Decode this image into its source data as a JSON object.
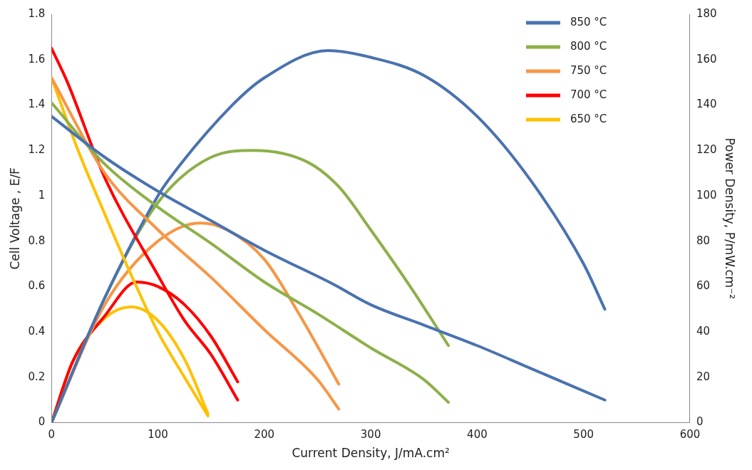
{
  "chart_data": {
    "type": "line",
    "xlabel": "Current Density, J/mA.cm²",
    "ylabel": "Cell Voltage , E/F",
    "y2label": "Power Density, P/mW.cm⁻²",
    "xlim": [
      0,
      600
    ],
    "xticks": [
      0,
      100,
      200,
      300,
      400,
      500,
      600
    ],
    "ylim": [
      0,
      1.8
    ],
    "yticks": [
      0,
      0.2,
      0.4,
      0.6,
      0.8,
      1,
      1.2,
      1.4,
      1.6,
      1.8
    ],
    "y2lim": [
      0,
      180
    ],
    "y2ticks": [
      0,
      20,
      40,
      60,
      80,
      100,
      120,
      140,
      160,
      180
    ],
    "legend": "top right",
    "marker": "none",
    "line_style": "solid",
    "series": [
      {
        "name": "850 °C",
        "color": "#4a72b0",
        "x": [
          0,
          50,
          100,
          150,
          200,
          265,
          300,
          350,
          400,
          450,
          520
        ],
        "values": [
          1.35,
          1.17,
          1.02,
          0.89,
          0.76,
          0.61,
          0.52,
          0.43,
          0.34,
          0.24,
          0.1
        ]
      },
      {
        "name": "800 °C",
        "color": "#8db04a",
        "x": [
          0,
          50,
          100,
          150,
          200,
          250,
          300,
          350,
          373
        ],
        "values": [
          1.41,
          1.14,
          0.95,
          0.79,
          0.62,
          0.48,
          0.33,
          0.19,
          0.09
        ]
      },
      {
        "name": "750 °C",
        "color": "#f79646",
        "x": [
          0,
          50,
          100,
          150,
          200,
          250,
          270
        ],
        "values": [
          1.52,
          1.1,
          0.85,
          0.64,
          0.41,
          0.19,
          0.06
        ]
      },
      {
        "name": "700 °C",
        "color": "#ff0000",
        "x": [
          0,
          15,
          50,
          100,
          125,
          150,
          175
        ],
        "values": [
          1.65,
          1.5,
          1.08,
          0.65,
          0.45,
          0.3,
          0.1
        ]
      },
      {
        "name": "650 °C",
        "color": "#ffc000",
        "x": [
          0,
          25,
          50,
          75,
          100,
          125,
          147
        ],
        "values": [
          1.52,
          1.2,
          0.92,
          0.65,
          0.4,
          0.2,
          0.03
        ]
      },
      {
        "color": "#4a72b0",
        "axis": "y2",
        "x": [
          0,
          50,
          100,
          110,
          170,
          200,
          260,
          300,
          350,
          400,
          450,
          500,
          520
        ],
        "values": [
          0,
          55,
          100,
          107,
          140,
          152,
          164,
          161,
          153,
          135,
          107,
          70,
          50
        ]
      },
      {
        "color": "#8db04a",
        "axis": "y2",
        "x": [
          0,
          50,
          100,
          150,
          190,
          240,
          270,
          300,
          340,
          373
        ],
        "values": [
          0,
          55,
          97,
          117,
          120,
          115,
          104,
          85,
          58,
          34
        ]
      },
      {
        "color": "#f79646",
        "axis": "y2",
        "x": [
          0,
          50,
          100,
          140,
          165,
          200,
          230,
          270
        ],
        "values": [
          0,
          52,
          80,
          88,
          85,
          72,
          50,
          17
        ]
      },
      {
        "color": "#ff0000",
        "axis": "y2",
        "x": [
          0,
          20,
          50,
          80,
          100,
          125,
          150,
          175
        ],
        "values": [
          0,
          27,
          47,
          62,
          60,
          52,
          38,
          18
        ]
      },
      {
        "color": "#ffc000",
        "axis": "y2",
        "x": [
          0,
          20,
          50,
          75,
          100,
          125,
          147
        ],
        "values": [
          0,
          27,
          46,
          51,
          45,
          28,
          4
        ]
      }
    ]
  }
}
